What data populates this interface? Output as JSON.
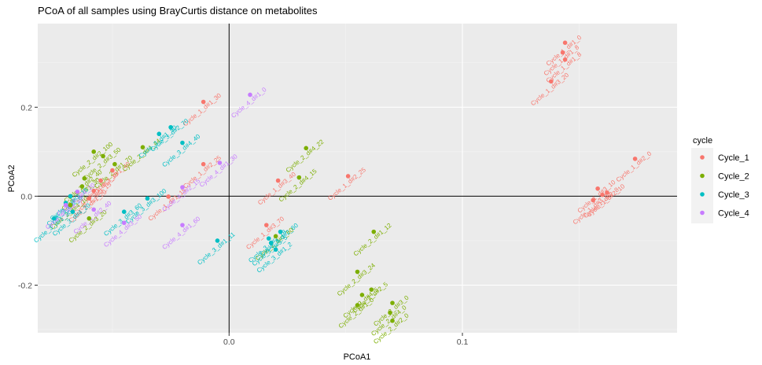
{
  "chart_data": {
    "type": "scatter",
    "title": "PCoA of all samples using BrayCurtis distance on metabolites",
    "xlabel": "PCoA1",
    "ylabel": "PCoA2",
    "xlim": [
      -0.082,
      0.192
    ],
    "ylim": [
      -0.307,
      0.388
    ],
    "x_ticks": [
      0.0,
      0.1
    ],
    "x_tick_labels": [
      "0.0",
      "0.1"
    ],
    "y_ticks": [
      -0.2,
      0.0,
      0.2
    ],
    "y_tick_labels": [
      "-0.2",
      "0.0",
      "0.2"
    ],
    "reference_lines": {
      "x": 0,
      "y": 0
    },
    "grid": true,
    "legend": {
      "title": "cycle",
      "position": "right"
    },
    "series": [
      {
        "name": "Cycle_1",
        "color": "#F8766D",
        "points": [
          {
            "x": 0.144,
            "y": 0.345,
            "label": "Cycle_1_d#1_0"
          },
          {
            "x": 0.143,
            "y": 0.323,
            "label": "Cycle_1_d#1_8"
          },
          {
            "x": 0.144,
            "y": 0.307,
            "label": "Cycle_1_d#1_8"
          },
          {
            "x": 0.138,
            "y": 0.258,
            "label": "Cycle_1_d#3_20"
          },
          {
            "x": 0.174,
            "y": 0.084,
            "label": "Cycle_1_d#2_0"
          },
          {
            "x": 0.158,
            "y": 0.017,
            "label": "Cycle_1_d#3_10"
          },
          {
            "x": 0.162,
            "y": 0.008,
            "label": "Cycle_1_d#2_10"
          },
          {
            "x": 0.156,
            "y": -0.009,
            "label": "Cycle_1_d#3_25"
          },
          {
            "x": 0.16,
            "y": 0.003,
            "label": "Cycle_1_d#2_8"
          },
          {
            "x": -0.011,
            "y": 0.212,
            "label": "Cycle_1_d#1_30"
          },
          {
            "x": -0.011,
            "y": 0.072,
            "label": "Cycle_1_d#2_25"
          },
          {
            "x": 0.021,
            "y": 0.035,
            "label": "Cycle_1_d#3_40"
          },
          {
            "x": 0.051,
            "y": 0.045,
            "label": "Cycle_1_d#2_25"
          },
          {
            "x": -0.026,
            "y": -0.001,
            "label": "Cycle_1_d#1_15"
          },
          {
            "x": 0.016,
            "y": -0.065,
            "label": "Cycle_1_d#3_70"
          },
          {
            "x": -0.05,
            "y": 0.058,
            "label": "Cycle_1_d#1_40"
          },
          {
            "x": -0.055,
            "y": 0.035,
            "label": "Cycle_1_d#2_30"
          },
          {
            "x": -0.058,
            "y": 0.012,
            "label": "Cycle_1_d#3_15"
          },
          {
            "x": -0.06,
            "y": -0.005,
            "label": "Cycle_1_d#1_20"
          }
        ]
      },
      {
        "name": "Cycle_2",
        "color": "#7CAE00",
        "points": [
          {
            "x": 0.033,
            "y": 0.108,
            "label": "Cycle_2_d#4_22"
          },
          {
            "x": 0.03,
            "y": 0.042,
            "label": "Cycle_2_d#4_15"
          },
          {
            "x": 0.062,
            "y": -0.08,
            "label": "Cycle_2_d#1_12"
          },
          {
            "x": 0.055,
            "y": -0.17,
            "label": "Cycle_2_d#3_24"
          },
          {
            "x": 0.057,
            "y": -0.222,
            "label": "Cycle_2_d#4_5"
          },
          {
            "x": 0.061,
            "y": -0.21,
            "label": "Cycle_2_d#2_5"
          },
          {
            "x": 0.055,
            "y": -0.245,
            "label": "Cycle_2_d#1_0"
          },
          {
            "x": 0.07,
            "y": -0.24,
            "label": "Cycle_2_d#3_0"
          },
          {
            "x": 0.069,
            "y": -0.262,
            "label": "Cycle_2_d#4_0"
          },
          {
            "x": 0.07,
            "y": -0.28,
            "label": "Cycle_2_d#2_0"
          },
          {
            "x": -0.058,
            "y": 0.1,
            "label": "Cycle_2_d#2_100"
          },
          {
            "x": -0.054,
            "y": 0.09,
            "label": "Cycle_2_d#3_50"
          },
          {
            "x": -0.037,
            "y": 0.11,
            "label": "Cycle_2_d#4_44"
          },
          {
            "x": -0.049,
            "y": 0.072,
            "label": "Cycle_2_d#1_70"
          },
          {
            "x": -0.062,
            "y": 0.04,
            "label": "Cycle_2_d#2_40"
          },
          {
            "x": 0.02,
            "y": -0.09,
            "label": "Cycle_2_d#1_60"
          },
          {
            "x": -0.06,
            "y": -0.05,
            "label": "Cycle_2_d#3_20"
          },
          {
            "x": -0.068,
            "y": -0.02,
            "label": "Cycle_2_d#4_10"
          },
          {
            "x": -0.063,
            "y": 0.022,
            "label": "Cycle_2_d#1_30"
          }
        ]
      },
      {
        "name": "Cycle_3",
        "color": "#00BFC4",
        "points": [
          {
            "x": -0.025,
            "y": 0.155,
            "label": "Cycle_3_d#2_70"
          },
          {
            "x": -0.03,
            "y": 0.14,
            "label": "Cycle_3_d#1_50"
          },
          {
            "x": -0.02,
            "y": 0.12,
            "label": "Cycle_3_d#4_40"
          },
          {
            "x": -0.035,
            "y": -0.005,
            "label": "Cycle_3_d#3_100"
          },
          {
            "x": -0.045,
            "y": -0.035,
            "label": "Cycle_3_d#3_60"
          },
          {
            "x": -0.005,
            "y": -0.1,
            "label": "Cycle_3_d#1_11"
          },
          {
            "x": 0.022,
            "y": -0.08,
            "label": "Cycle_3_d#2_60"
          },
          {
            "x": 0.017,
            "y": -0.095,
            "label": "Cycle_3_d#2_18"
          },
          {
            "x": 0.02,
            "y": -0.12,
            "label": "Cycle_3_d#1_2"
          },
          {
            "x": 0.018,
            "y": -0.105,
            "label": "Cycle_3_d#3_5"
          },
          {
            "x": -0.067,
            "y": -0.035,
            "label": "Cycle_3_d#4_20"
          },
          {
            "x": -0.075,
            "y": -0.05,
            "label": "Cycle_3_d#1_30"
          },
          {
            "x": -0.07,
            "y": -0.015,
            "label": "Cycle_3_d#2_8"
          },
          {
            "x": -0.068,
            "y": 0.0,
            "label": "Cycle_3_d#3_15"
          }
        ]
      },
      {
        "name": "Cycle_4",
        "color": "#C77CFF",
        "points": [
          {
            "x": 0.009,
            "y": 0.228,
            "label": "Cycle_4_d#1_0"
          },
          {
            "x": -0.004,
            "y": 0.075,
            "label": "Cycle_4_d#1_30"
          },
          {
            "x": -0.02,
            "y": 0.02,
            "label": "Cycle_4_d#2_15"
          },
          {
            "x": -0.02,
            "y": -0.065,
            "label": "Cycle_4_d#1_60"
          },
          {
            "x": -0.045,
            "y": -0.06,
            "label": "Cycle_4_d#3_50"
          },
          {
            "x": -0.058,
            "y": -0.03,
            "label": "Cycle_4_d#2_40"
          },
          {
            "x": -0.065,
            "y": 0.01,
            "label": "Cycle_4_d#4_20"
          },
          {
            "x": -0.07,
            "y": -0.02,
            "label": "Cycle_4_d#3_10"
          }
        ]
      }
    ]
  }
}
